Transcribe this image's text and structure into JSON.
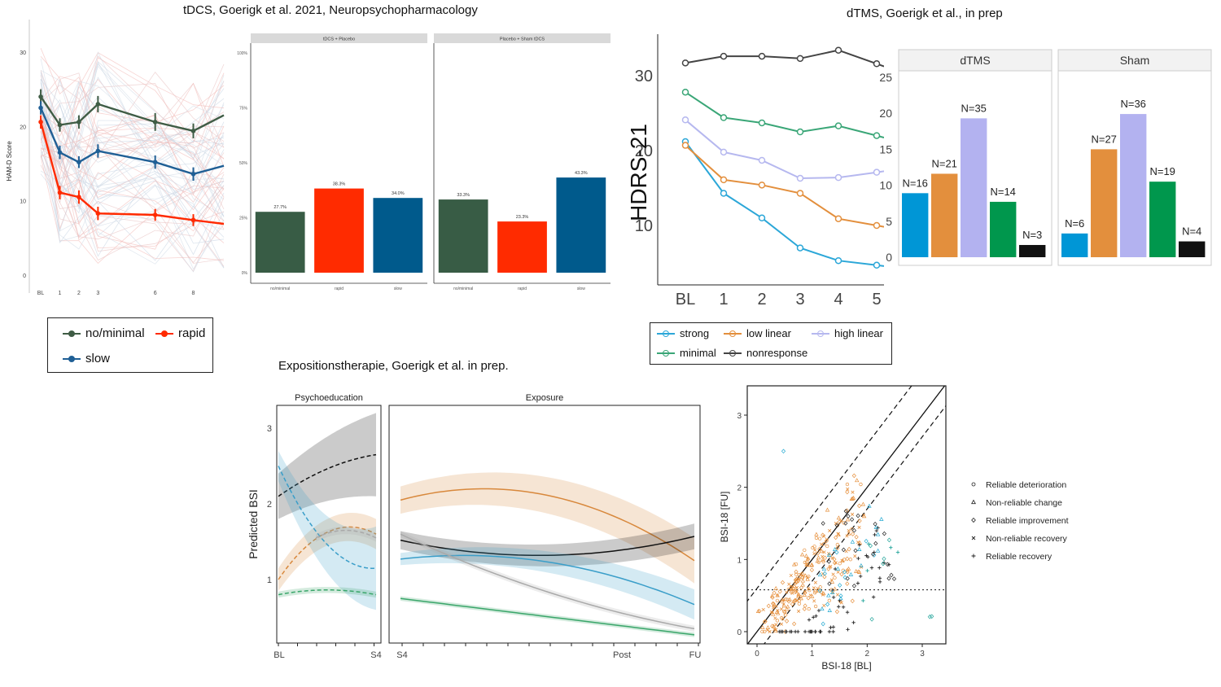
{
  "titles": {
    "tdcs": "tDCS, Goerigk et al. 2021, Neuropsychopharmacology",
    "dtms": "dTMS, Goerigk et al., in prep",
    "expo": "Expositionstherapie, Goerigk et al. in prep."
  },
  "colors": {
    "nominimal": "#3f5c45",
    "rapid": "#ff2a00",
    "slow": "#1f5f95",
    "dtms_green": "#385c45",
    "dtms_red": "#ff2b00",
    "dtms_blue": "#005a8c",
    "strong": "#2ca7d8",
    "low_linear": "#e38f3d",
    "high_linear": "#b6b8ef",
    "minimal": "#3aa677",
    "nonresponse": "#444444",
    "black_bar": "#111111",
    "sky": "#0096d6",
    "orange_bar": "#e38f3d",
    "lavender": "#b3b2f0",
    "green_bar": "#00974d",
    "expo_black": "#111111",
    "expo_orange": "#d8883c",
    "expo_blue": "#3a9ec9",
    "expo_green": "#3aa66a",
    "expo_grey": "#a9a9a9",
    "scatter_orange": "#e6903d",
    "scatter_cyan": "#24a9d1",
    "scatter_teal": "#24a59b",
    "scatter_black": "#222222"
  },
  "chart_data": [
    {
      "id": "tdcs_lines",
      "type": "line",
      "ylabel": "HAM-D Score",
      "x": [
        "BL",
        "1",
        "2",
        "3",
        "6",
        "8"
      ],
      "x_numeric": [
        0,
        1,
        2,
        3,
        6,
        8
      ],
      "xlim": [
        -0.6,
        9.6
      ],
      "ylim": [
        -1,
        34
      ],
      "y_ticks": [
        0,
        10,
        20,
        30
      ],
      "series": [
        {
          "name": "no/minimal",
          "x": [
            0,
            1,
            2,
            3,
            6,
            8,
            9.6
          ],
          "values": [
            24,
            20.2,
            20.6,
            23,
            20.6,
            19.4,
            21.5
          ],
          "errors": [
            1,
            0.9,
            0.9,
            1.1,
            1.2,
            1.0,
            0
          ]
        },
        {
          "name": "rapid",
          "x": [
            0,
            1,
            2,
            3,
            6,
            8,
            9.6
          ],
          "values": [
            20.6,
            11.1,
            10.5,
            8.3,
            8.1,
            7.4,
            6.9
          ],
          "errors": [
            0.9,
            0.9,
            0.9,
            0.9,
            0.8,
            0.8,
            0
          ]
        },
        {
          "name": "slow",
          "x": [
            0,
            1,
            2,
            3,
            6,
            8,
            9.6
          ],
          "values": [
            22.5,
            16.5,
            15.2,
            16.7,
            15.2,
            13.6,
            14.7
          ],
          "errors": [
            0.9,
            0.9,
            0.8,
            0.9,
            0.9,
            0.9,
            0
          ]
        }
      ],
      "legend": [
        "no/minimal",
        "rapid",
        "slow"
      ]
    },
    {
      "id": "tdcs_bars",
      "type": "bar",
      "panels": [
        {
          "title": "tDCS + Placebo",
          "categories": [
            "no/minimal",
            "rapid",
            "slow"
          ],
          "values": [
            27.7,
            38.3,
            34.0
          ],
          "labels": [
            "27.7%",
            "38.3%",
            "34.0%"
          ]
        },
        {
          "title": "Placebo + Sham tDCS",
          "categories": [
            "no/minimal",
            "rapid",
            "slow"
          ],
          "values": [
            33.3,
            23.3,
            43.3
          ],
          "labels": [
            "33.3%",
            "23.3%",
            "43.3%"
          ]
        }
      ],
      "ylim": [
        0,
        100
      ],
      "y_ticks": [
        "0%",
        "25%",
        "50%",
        "75%",
        "100%"
      ]
    },
    {
      "id": "dtms_lines",
      "type": "line",
      "ylabel": "HDRS-21",
      "x": [
        "BL",
        "1",
        "2",
        "3",
        "4",
        "5"
      ],
      "ylim": [
        4,
        37
      ],
      "y_ticks": [
        10,
        20,
        30
      ],
      "series": [
        {
          "name": "strong",
          "values": [
            21.2,
            14.3,
            11.0,
            7.0,
            5.3,
            4.7
          ]
        },
        {
          "name": "low linear",
          "values": [
            20.7,
            16.1,
            15.4,
            14.3,
            10.9,
            10.0
          ]
        },
        {
          "name": "high linear",
          "values": [
            24.1,
            19.8,
            18.7,
            16.3,
            16.4,
            17.1
          ]
        },
        {
          "name": "minimal",
          "values": [
            27.8,
            24.4,
            23.7,
            22.5,
            23.3,
            22.0
          ]
        },
        {
          "name": "nonresponse",
          "values": [
            31.7,
            32.6,
            32.6,
            32.3,
            33.4,
            31.6
          ]
        }
      ],
      "legend": [
        "strong",
        "low linear",
        "high linear",
        "minimal",
        "nonresponse"
      ]
    },
    {
      "id": "dtms_bars",
      "type": "bar",
      "panels": [
        {
          "title": "dTMS",
          "categories": [
            "strong",
            "low linear",
            "high linear",
            "minimal",
            "nonresponse"
          ],
          "values": [
            8.9,
            11.6,
            19.3,
            7.7,
            1.7
          ],
          "labels": [
            "N=16",
            "N=21",
            "N=35",
            "N=14",
            "N=3"
          ]
        },
        {
          "title": "Sham",
          "categories": [
            "strong",
            "low linear",
            "high linear",
            "minimal",
            "nonresponse"
          ],
          "values": [
            3.3,
            15.0,
            19.9,
            10.5,
            2.2
          ],
          "labels": [
            "N=6",
            "N=27",
            "N=36",
            "N=19",
            "N=4"
          ]
        }
      ],
      "ylim": [
        -2,
        27
      ],
      "y_ticks": [
        0,
        5,
        10,
        15,
        20,
        25
      ]
    },
    {
      "id": "expo_curves",
      "type": "line",
      "ylabel": "Predicted BSI",
      "panels": [
        {
          "title": "Psychoeducation",
          "x_labels": [
            "BL",
            "S4"
          ]
        },
        {
          "title": "Exposure",
          "x_labels": [
            "S4",
            "Post",
            "FU"
          ]
        }
      ],
      "ylim": [
        0.1,
        3.4
      ],
      "y_ticks": [
        1,
        2,
        3
      ]
    },
    {
      "id": "bsi_scatter",
      "type": "scatter",
      "xlabel": "BSI-18 [BL]",
      "ylabel": "BSI-18 [FU]",
      "xlim": [
        -0.15,
        3.45
      ],
      "ylim": [
        -0.15,
        3.35
      ],
      "x_ticks": [
        0,
        1,
        2,
        3
      ],
      "y_ticks": [
        0,
        1,
        2,
        3
      ],
      "cutoff": 0.58,
      "legend": [
        "Reliable deterioration",
        "Non-reliable change",
        "Reliable improvement",
        "Non-reliable recovery",
        "Reliable recovery"
      ]
    }
  ]
}
